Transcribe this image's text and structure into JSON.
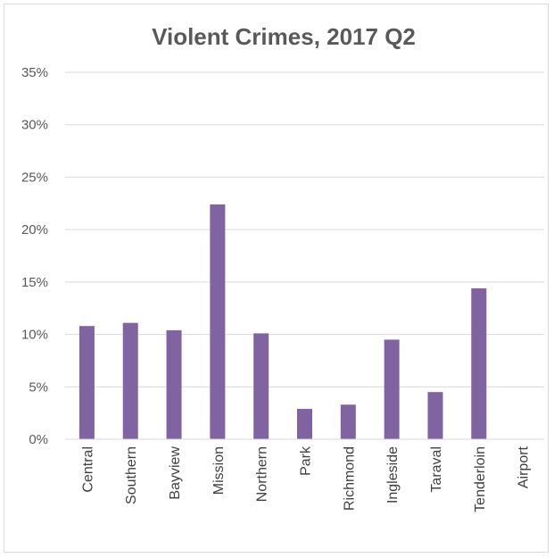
{
  "chart_data": {
    "type": "bar",
    "title": "Violent Crimes, 2017 Q2",
    "xlabel": "",
    "ylabel": "",
    "categories": [
      "Central",
      "Southern",
      "Bayview",
      "Mission",
      "Northern",
      "Park",
      "Richmond",
      "Ingleside",
      "Taraval",
      "Tenderloin",
      "Airport"
    ],
    "values": [
      10.8,
      11.1,
      10.4,
      22.4,
      10.1,
      2.9,
      3.3,
      9.5,
      4.5,
      14.4,
      0.0
    ],
    "yticks": [
      "0%",
      "5%",
      "10%",
      "15%",
      "20%",
      "25%",
      "30%",
      "35%"
    ],
    "ylim": [
      0,
      35
    ],
    "grid": true,
    "legend": "none",
    "bar_color": "#8064a2",
    "grid_color": "#d9d9d9"
  }
}
